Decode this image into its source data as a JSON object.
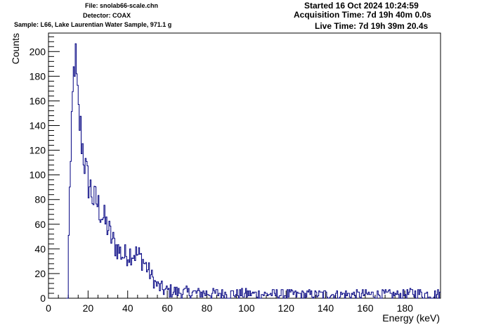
{
  "header": {
    "file": "File: snolab66-scale.chn",
    "detector": "Detector: COAX",
    "sample": "Sample: L66, Lake Laurentian Water Sample, 971.1 g",
    "started": "Started 16 Oct 2024 10:24:59",
    "acquisition_time": "Acquisition Time: 7d 19h 40m 0.0s",
    "live_time": "Live Time: 7d 19h 39m 20.4s"
  },
  "chart_data": {
    "type": "histogram",
    "title": "",
    "xlabel": "Energy (keV)",
    "ylabel": "Counts",
    "xlim": [
      0,
      198
    ],
    "ylim": [
      0,
      215
    ],
    "x_ticks": [
      0,
      20,
      40,
      60,
      80,
      100,
      120,
      140,
      160,
      180
    ],
    "y_ticks": [
      0,
      20,
      40,
      60,
      80,
      100,
      120,
      140,
      160,
      180,
      200
    ],
    "grid": false,
    "line_color": "#000080",
    "bin_width": 0.5,
    "start_energy": 9.0,
    "spectrum_keypoints": [
      [
        9.0,
        0
      ],
      [
        10.0,
        0
      ],
      [
        10.5,
        95
      ],
      [
        11.0,
        98
      ],
      [
        11.5,
        115
      ],
      [
        12.0,
        150
      ],
      [
        12.5,
        170
      ],
      [
        13.0,
        190
      ],
      [
        13.5,
        200
      ],
      [
        14.0,
        178
      ],
      [
        14.5,
        168
      ],
      [
        15.0,
        150
      ],
      [
        16.0,
        140
      ],
      [
        17.0,
        125
      ],
      [
        18.0,
        115
      ],
      [
        19.0,
        100
      ],
      [
        20.0,
        95
      ],
      [
        21.0,
        90
      ],
      [
        22.0,
        85
      ],
      [
        23.0,
        78
      ],
      [
        24.0,
        80
      ],
      [
        25.0,
        75
      ],
      [
        26.0,
        72
      ],
      [
        27.0,
        68
      ],
      [
        28.0,
        64
      ],
      [
        29.0,
        60
      ],
      [
        30.0,
        58
      ],
      [
        31.0,
        52
      ],
      [
        32.0,
        48
      ],
      [
        33.0,
        45
      ],
      [
        34.0,
        42
      ],
      [
        35.0,
        40
      ],
      [
        36.0,
        38
      ],
      [
        37.0,
        36
      ],
      [
        38.0,
        34
      ],
      [
        40.0,
        36
      ],
      [
        42.0,
        37
      ],
      [
        44.0,
        36
      ],
      [
        46.0,
        34
      ],
      [
        48.0,
        30
      ],
      [
        50.0,
        24
      ],
      [
        52.0,
        18
      ],
      [
        54.0,
        12
      ],
      [
        56.0,
        9
      ],
      [
        58.0,
        7
      ],
      [
        60.0,
        6
      ],
      [
        65.0,
        5
      ],
      [
        70.0,
        4.5
      ],
      [
        80.0,
        4
      ],
      [
        100.0,
        3.5
      ],
      [
        130.0,
        3
      ],
      [
        160.0,
        3
      ],
      [
        180.0,
        3
      ],
      [
        184.0,
        4
      ],
      [
        186.0,
        3.5
      ],
      [
        198.0,
        3
      ]
    ]
  }
}
